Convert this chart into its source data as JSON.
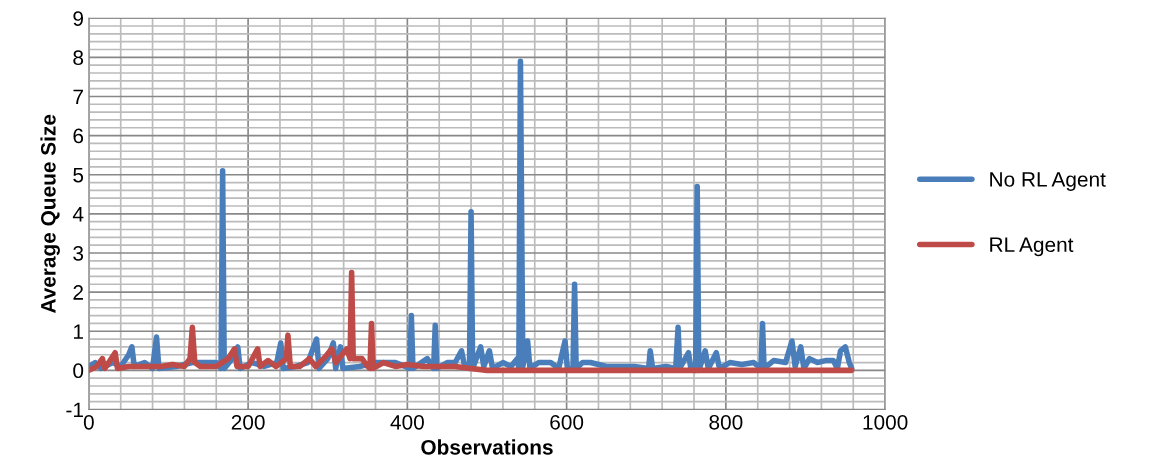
{
  "chart_data": {
    "type": "line",
    "xlabel": "Observations",
    "ylabel": "Average Queue Size",
    "xlim": [
      0,
      1000
    ],
    "xticks": [
      0,
      200,
      400,
      600,
      800,
      1000
    ],
    "ylim": [
      -1,
      9
    ],
    "yticks": [
      -1,
      0,
      1,
      2,
      3,
      4,
      5,
      6,
      7,
      8,
      9
    ],
    "grid": true,
    "legend": "right",
    "marker": "none",
    "line_style": "solid",
    "series": [
      {
        "name": "No RL Agent",
        "color": "#4a7ebb",
        "x": [
          0,
          8,
          15,
          30,
          40,
          50,
          54,
          57,
          70,
          80,
          85,
          88,
          110,
          130,
          150,
          160,
          166,
          168,
          170,
          180,
          187,
          190,
          205,
          220,
          236,
          241,
          244,
          260,
          275,
          286,
          289,
          300,
          307,
          310,
          316,
          319,
          340,
          360,
          385,
          403,
          405,
          407,
          425,
          433,
          435,
          437,
          450,
          460,
          468,
          472,
          478,
          480,
          482,
          492,
          496,
          503,
          507,
          520,
          530,
          538,
          540,
          542,
          545,
          551,
          554,
          565,
          580,
          590,
          598,
          601,
          608,
          610,
          612,
          620,
          630,
          650,
          665,
          685,
          703,
          705,
          708,
          725,
          737,
          740,
          742,
          753,
          756,
          762,
          764,
          766,
          774,
          778,
          788,
          792,
          805,
          820,
          835,
          844,
          846,
          848,
          860,
          875,
          883,
          887,
          894,
          898,
          905,
          915,
          925,
          935,
          940,
          944,
          950,
          955,
          958
        ],
        "values": [
          0.1,
          0.2,
          0.05,
          0.2,
          0.1,
          0.4,
          0.6,
          0.1,
          0.2,
          0.05,
          0.85,
          0.05,
          0.1,
          0.2,
          0.2,
          0.2,
          0.05,
          5.1,
          0.05,
          0.3,
          0.6,
          0.05,
          0.2,
          0.1,
          0.2,
          0.7,
          0.05,
          0.1,
          0.2,
          0.8,
          0.05,
          0.3,
          0.7,
          0.05,
          0.6,
          0.05,
          0.1,
          0.2,
          0.2,
          0.05,
          1.4,
          0.05,
          0.3,
          0.05,
          1.15,
          0.05,
          0.2,
          0.2,
          0.5,
          0.1,
          0.05,
          4.05,
          0.05,
          0.6,
          0.1,
          0.5,
          0.05,
          0.2,
          0.1,
          0.3,
          0.05,
          7.9,
          0.1,
          0.75,
          0.05,
          0.2,
          0.2,
          0.05,
          0.75,
          0.05,
          0.05,
          2.2,
          0.05,
          0.2,
          0.2,
          0.1,
          0.1,
          0.1,
          0.05,
          0.5,
          0.05,
          0.1,
          0.05,
          1.1,
          0.05,
          0.45,
          0.05,
          0,
          4.7,
          0,
          0.5,
          0.05,
          0.45,
          0.05,
          0.2,
          0.15,
          0.2,
          0.05,
          1.2,
          0.05,
          0.25,
          0.2,
          0.75,
          0.1,
          0.6,
          0.05,
          0.3,
          0.2,
          0.25,
          0.25,
          0.05,
          0.5,
          0.6,
          0.2,
          0.05
        ]
      },
      {
        "name": "RL Agent",
        "color": "#be4b48",
        "x": [
          0,
          10,
          17,
          20,
          33,
          36,
          50,
          70,
          90,
          105,
          120,
          127,
          130,
          133,
          140,
          160,
          175,
          183,
          186,
          200,
          212,
          215,
          225,
          235,
          248,
          250,
          253,
          265,
          277,
          285,
          297,
          305,
          310,
          324,
          328,
          330,
          332,
          343,
          350,
          353,
          355,
          357,
          370,
          385,
          400,
          420,
          440,
          460,
          480,
          500,
          958
        ],
        "values": [
          0,
          0.1,
          0.3,
          0.05,
          0.45,
          0.05,
          0.1,
          0.1,
          0.1,
          0.15,
          0.1,
          0.3,
          1.1,
          0.2,
          0.1,
          0.1,
          0.3,
          0.55,
          0.1,
          0.1,
          0.55,
          0.1,
          0.25,
          0.1,
          0.3,
          0.9,
          0.1,
          0.1,
          0.3,
          0.1,
          0.35,
          0.55,
          0.2,
          0.55,
          0.3,
          2.5,
          0.3,
          0.3,
          0.1,
          0.05,
          1.2,
          0.05,
          0.2,
          0.1,
          0.15,
          0.1,
          0.1,
          0.1,
          0.05,
          0,
          0
        ]
      }
    ]
  }
}
